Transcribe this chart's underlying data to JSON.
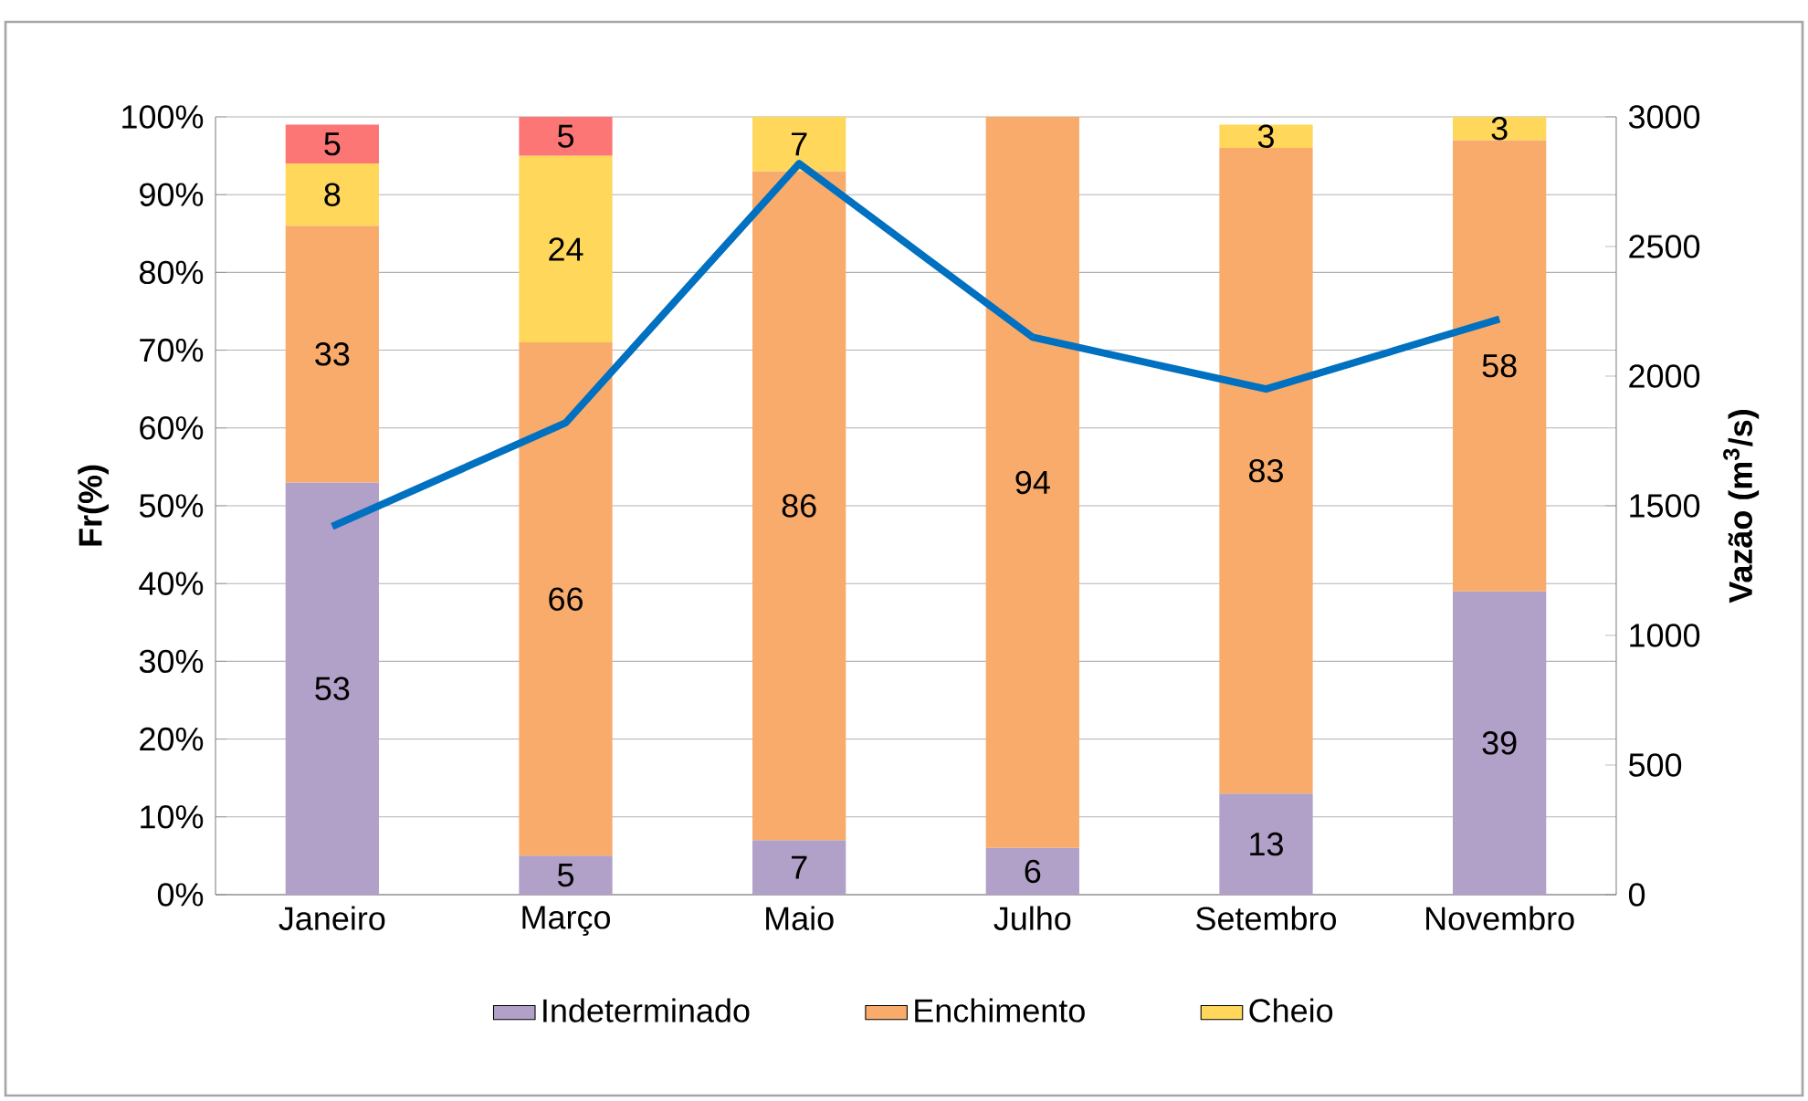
{
  "chart_data": {
    "type": "bar",
    "stacked": true,
    "categories": [
      "Janeiro",
      "Março",
      "Maio",
      "Julho",
      "Setembro",
      "Novembro"
    ],
    "ylabel": "Fr(%)",
    "y2label": "Vazão (m$^{3}$/s)",
    "ylim": [
      0,
      100
    ],
    "yticks": [
      {
        "value": 0,
        "label": "0%"
      },
      {
        "value": 10,
        "label": "10%"
      },
      {
        "value": 20,
        "label": "20%"
      },
      {
        "value": 30,
        "label": "30%"
      },
      {
        "value": 40,
        "label": "40%"
      },
      {
        "value": 50,
        "label": "50%"
      },
      {
        "value": 60,
        "label": "60%"
      },
      {
        "value": 70,
        "label": "70%"
      },
      {
        "value": 80,
        "label": "80%"
      },
      {
        "value": 90,
        "label": "90%"
      },
      {
        "value": 100,
        "label": "100%"
      }
    ],
    "y2lim": [
      0,
      3000
    ],
    "y2ticks": [
      0,
      500,
      1000,
      1500,
      2000,
      2500,
      3000
    ],
    "grid": "y",
    "legend": "bottom",
    "series": [
      {
        "name": "Indeterminado",
        "color": "#b1a0c7",
        "values": [
          53,
          5,
          7,
          6,
          13,
          39
        ],
        "value_labels": [
          "53",
          "5",
          "7",
          "6",
          "13",
          "39"
        ]
      },
      {
        "name": "Enchimento",
        "color": "#f8ab6b",
        "values": [
          33,
          66,
          86,
          94,
          83,
          58
        ],
        "value_labels": [
          "33",
          "66",
          "86",
          "94",
          "83",
          "58"
        ]
      },
      {
        "name": "Cheio",
        "color": "#ffd75a",
        "values": [
          8,
          24,
          7,
          null,
          3,
          3
        ],
        "value_labels": [
          "8",
          "24",
          "7",
          null,
          "3",
          "3"
        ]
      },
      {
        "color": "#fd7676",
        "values": [
          5,
          5,
          null,
          null,
          null,
          null
        ],
        "value_labels": [
          "5",
          "5",
          null,
          null,
          null,
          null
        ]
      },
      {
        "type": "line",
        "axis": "y2",
        "color": "#0070c0",
        "values": [
          1420,
          1820,
          2820,
          2150,
          1950,
          2220
        ]
      }
    ]
  }
}
